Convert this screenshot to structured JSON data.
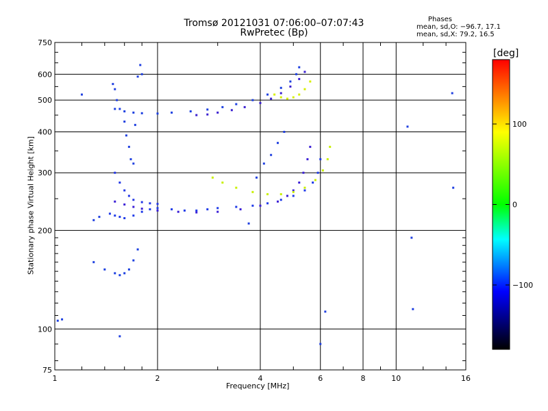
{
  "header": {
    "title_line1": "Tromsø 20121031 07:06:00–07:07:43",
    "title_line2": "RwPretec (Bp)",
    "stats_heading": "Phases",
    "stats_line1": "mean, sd,O: −96.7, 17.1",
    "stats_line2": "mean, sd,X:  79.2, 16.5"
  },
  "chart_data": {
    "type": "scatter",
    "xlabel": "Frequency [MHz]",
    "ylabel": "Stationary phase Virtual Height [km]",
    "x_scale": "log",
    "y_scale": "log",
    "xlim": [
      1,
      16
    ],
    "ylim": [
      75,
      750
    ],
    "x_ticks": [
      "1",
      "2",
      "4",
      "6",
      "8",
      "10",
      "16"
    ],
    "x_tick_values": [
      1,
      2,
      4,
      6,
      8,
      10,
      16
    ],
    "y_ticks": [
      "75",
      "100",
      "200",
      "300",
      "400",
      "500",
      "600",
      "750"
    ],
    "y_tick_values": [
      75,
      100,
      200,
      300,
      400,
      500,
      600,
      750
    ],
    "grid": true,
    "colorbar": {
      "label": "[deg]",
      "range": [
        -180,
        180
      ],
      "ticks": [
        "100",
        "0",
        "−100"
      ],
      "tick_values": [
        100,
        0,
        -100
      ],
      "colors": [
        "#ff0000",
        "#ffff00",
        "#00ff00",
        "#00ffff",
        "#0000ff",
        "#000000"
      ]
    },
    "series": [
      {
        "trace": "low-1F",
        "color": "#1b3fe0",
        "points": [
          [
            1.02,
            106
          ],
          [
            1.05,
            107
          ],
          [
            1.3,
            160
          ],
          [
            1.4,
            152
          ],
          [
            1.5,
            148
          ],
          [
            1.55,
            146
          ],
          [
            1.6,
            148
          ],
          [
            1.65,
            152
          ],
          [
            1.7,
            162
          ],
          [
            1.75,
            175
          ]
        ]
      },
      {
        "trace": "F-trace-low",
        "color": "#1f3ae8",
        "points": [
          [
            1.45,
            225
          ],
          [
            1.5,
            222
          ],
          [
            1.55,
            220
          ],
          [
            1.6,
            218
          ],
          [
            1.7,
            222
          ],
          [
            1.8,
            228
          ],
          [
            1.9,
            232
          ],
          [
            2.0,
            234
          ],
          [
            2.2,
            232
          ],
          [
            2.4,
            230
          ],
          [
            2.6,
            230
          ],
          [
            2.8,
            232
          ],
          [
            3.0,
            234
          ],
          [
            3.4,
            236
          ],
          [
            3.8,
            238
          ],
          [
            4.2,
            242
          ],
          [
            4.6,
            248
          ],
          [
            5.0,
            255
          ],
          [
            5.4,
            265
          ],
          [
            5.7,
            280
          ],
          [
            5.9,
            300
          ],
          [
            6.0,
            330
          ]
        ]
      },
      {
        "trace": "F-trace-mid",
        "color": "#3b1fd6",
        "points": [
          [
            1.5,
            245
          ],
          [
            1.6,
            240
          ],
          [
            1.7,
            236
          ],
          [
            1.8,
            233
          ],
          [
            2.0,
            230
          ],
          [
            2.3,
            228
          ],
          [
            2.6,
            227
          ],
          [
            3.0,
            228
          ],
          [
            3.5,
            232
          ],
          [
            4.0,
            238
          ],
          [
            4.5,
            245
          ],
          [
            4.8,
            255
          ],
          [
            5.0,
            265
          ],
          [
            5.2,
            280
          ],
          [
            5.35,
            300
          ],
          [
            5.5,
            330
          ],
          [
            5.6,
            360
          ]
        ]
      },
      {
        "trace": "F-cusp",
        "color": "#2438e6",
        "points": [
          [
            1.5,
            300
          ],
          [
            1.55,
            280
          ],
          [
            1.6,
            265
          ],
          [
            1.65,
            255
          ],
          [
            1.7,
            248
          ],
          [
            1.8,
            244
          ],
          [
            1.9,
            242
          ],
          [
            2.0,
            241
          ]
        ]
      },
      {
        "trace": "X-trace-mid",
        "color": "#c8f000",
        "points": [
          [
            2.9,
            290
          ],
          [
            3.1,
            280
          ],
          [
            3.4,
            270
          ],
          [
            3.8,
            262
          ],
          [
            4.2,
            258
          ],
          [
            4.6,
            258
          ],
          [
            5.0,
            262
          ],
          [
            5.4,
            270
          ],
          [
            5.8,
            285
          ],
          [
            6.1,
            305
          ],
          [
            6.3,
            330
          ],
          [
            6.4,
            360
          ]
        ]
      },
      {
        "trace": "X-trace-high",
        "color": "#d7f000",
        "points": [
          [
            4.4,
            520
          ],
          [
            4.6,
            510
          ],
          [
            4.8,
            505
          ],
          [
            5.0,
            510
          ],
          [
            5.2,
            520
          ],
          [
            5.4,
            540
          ],
          [
            5.6,
            570
          ]
        ]
      },
      {
        "trace": "E2-upper",
        "color": "#1b3fe0",
        "points": [
          [
            1.5,
            470
          ],
          [
            1.6,
            462
          ],
          [
            1.7,
            458
          ],
          [
            1.8,
            456
          ],
          [
            2.0,
            455
          ],
          [
            2.2,
            458
          ],
          [
            2.5,
            462
          ],
          [
            2.8,
            468
          ],
          [
            3.1,
            476
          ],
          [
            3.4,
            486
          ],
          [
            3.8,
            500
          ],
          [
            4.2,
            520
          ],
          [
            4.6,
            545
          ],
          [
            4.9,
            570
          ],
          [
            5.1,
            600
          ],
          [
            5.2,
            630
          ]
        ]
      },
      {
        "trace": "E2-lower",
        "color": "#3a1fd0",
        "points": [
          [
            2.6,
            450
          ],
          [
            2.8,
            452
          ],
          [
            3.0,
            458
          ],
          [
            3.3,
            466
          ],
          [
            3.6,
            476
          ],
          [
            4.0,
            490
          ],
          [
            4.3,
            505
          ],
          [
            4.6,
            525
          ],
          [
            4.9,
            550
          ],
          [
            5.2,
            580
          ],
          [
            5.4,
            610
          ]
        ]
      },
      {
        "trace": "scatter-misc",
        "color": "#2040e0",
        "points": [
          [
            1.3,
            215
          ],
          [
            1.35,
            220
          ],
          [
            1.48,
            560
          ],
          [
            1.5,
            540
          ],
          [
            1.52,
            500
          ],
          [
            1.55,
            470
          ],
          [
            1.6,
            430
          ],
          [
            1.62,
            390
          ],
          [
            1.65,
            360
          ],
          [
            1.67,
            330
          ],
          [
            1.7,
            320
          ],
          [
            1.72,
            420
          ],
          [
            1.75,
            590
          ],
          [
            1.78,
            640
          ],
          [
            1.8,
            600
          ],
          [
            3.7,
            210
          ],
          [
            3.9,
            290
          ],
          [
            4.1,
            320
          ],
          [
            4.3,
            340
          ],
          [
            4.5,
            370
          ],
          [
            4.7,
            400
          ],
          [
            1.2,
            520
          ],
          [
            1.55,
            95
          ],
          [
            6.0,
            90
          ],
          [
            6.2,
            113
          ],
          [
            11.1,
            190
          ],
          [
            11.2,
            115
          ],
          [
            10.8,
            415
          ],
          [
            14.7,
            270
          ],
          [
            14.6,
            525
          ]
        ]
      }
    ]
  }
}
